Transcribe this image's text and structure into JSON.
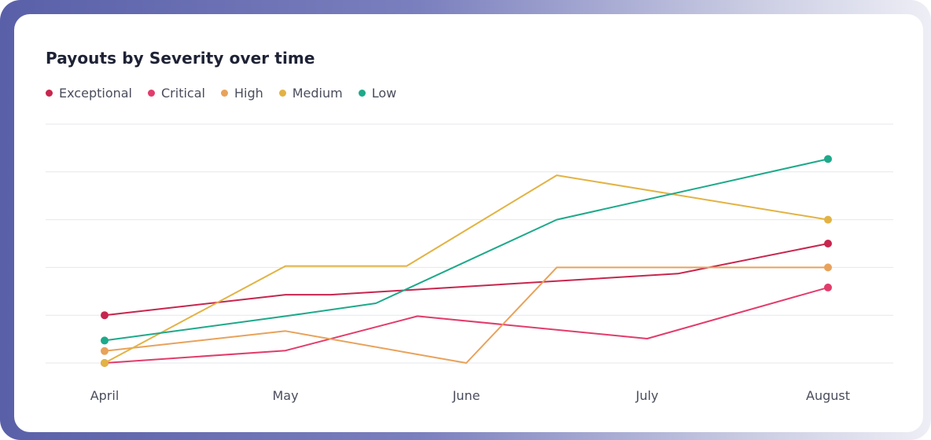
{
  "colors": {
    "exceptional": "#c7264e",
    "critical": "#e23c6b",
    "high": "#e8a25a",
    "medium": "#e2b344",
    "low": "#1ea98a",
    "grid": "#e6e7ec"
  },
  "chart_data": {
    "type": "line",
    "title": "Payouts by Severity over time",
    "x_labels": [
      "April",
      "May",
      "June",
      "July",
      "August"
    ],
    "x": [
      0,
      1,
      2,
      3,
      4
    ],
    "ylim": [
      0,
      5
    ],
    "grid": true,
    "legend_position": "top-left",
    "series": [
      {
        "name": "Exceptional",
        "color": "#c7264e",
        "x": [
          0,
          1,
          1.25,
          2,
          3.17,
          4
        ],
        "values": [
          1.0,
          1.43,
          1.43,
          1.6,
          1.87,
          2.5
        ],
        "end_markers": true
      },
      {
        "name": "Critical",
        "color": "#e23c6b",
        "x": [
          0,
          1,
          1.73,
          3.0,
          4
        ],
        "values": [
          0.0,
          0.26,
          0.98,
          0.51,
          1.58
        ],
        "end_markers": true
      },
      {
        "name": "High",
        "color": "#e8a25a",
        "x": [
          0,
          1,
          2,
          2.5,
          4
        ],
        "values": [
          0.25,
          0.67,
          0.0,
          2.0,
          2.0
        ],
        "end_markers": true
      },
      {
        "name": "Medium",
        "color": "#e2b344",
        "x": [
          0,
          1,
          1.67,
          2.5,
          4
        ],
        "values": [
          0.0,
          2.03,
          2.03,
          3.93,
          3.0
        ],
        "end_markers": true
      },
      {
        "name": "Low",
        "color": "#1ea98a",
        "x": [
          0,
          1,
          1.5,
          2.5,
          4
        ],
        "values": [
          0.47,
          0.98,
          1.25,
          3.0,
          4.27
        ],
        "end_markers": true
      }
    ]
  }
}
